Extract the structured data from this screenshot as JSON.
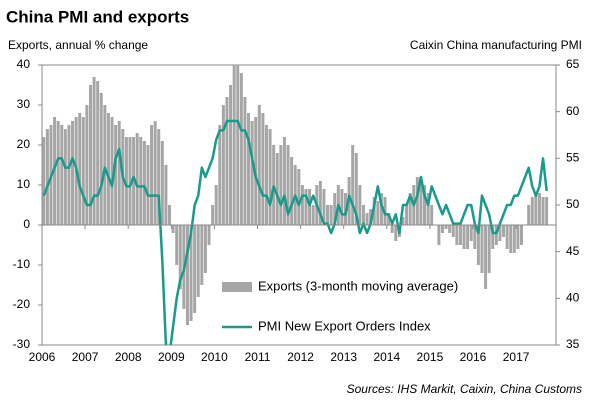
{
  "chart_data": {
    "type": "bar-line",
    "title": "China PMI and exports",
    "y_label": "Exports, annual % change",
    "y2_label": "Caixin China manufacturing PMI",
    "source": "Sources: IHS Markit, Caixin, China Customs",
    "categories": [
      "2006",
      null,
      null,
      null,
      null,
      null,
      null,
      null,
      null,
      null,
      null,
      null,
      "2007",
      null,
      null,
      null,
      null,
      null,
      null,
      null,
      null,
      null,
      null,
      null,
      "2008",
      null,
      null,
      null,
      null,
      null,
      null,
      null,
      null,
      null,
      null,
      null,
      "2009",
      null,
      null,
      null,
      null,
      null,
      null,
      null,
      null,
      null,
      null,
      null,
      "2010",
      null,
      null,
      null,
      null,
      null,
      null,
      null,
      null,
      null,
      null,
      null,
      "2011",
      null,
      null,
      null,
      null,
      null,
      null,
      null,
      null,
      null,
      null,
      null,
      "2012",
      null,
      null,
      null,
      null,
      null,
      null,
      null,
      null,
      null,
      null,
      null,
      "2013",
      null,
      null,
      null,
      null,
      null,
      null,
      null,
      null,
      null,
      null,
      null,
      "2014",
      null,
      null,
      null,
      null,
      null,
      null,
      null,
      null,
      null,
      null,
      null,
      "2015",
      null,
      null,
      null,
      null,
      null,
      null,
      null,
      null,
      null,
      null,
      null,
      "2016",
      null,
      null,
      null,
      null,
      null,
      null,
      null,
      null,
      null,
      null,
      null,
      "2017",
      null,
      null,
      null,
      null,
      null,
      null,
      null,
      null
    ],
    "series": [
      {
        "name": "Exports (3-month moving average)",
        "color": "#a6a6a6",
        "axis": "y",
        "values": [
          22,
          24,
          25,
          27,
          26,
          25,
          24,
          25,
          26,
          27,
          28,
          27,
          30,
          35,
          37,
          36,
          33,
          30,
          28,
          27,
          25,
          26,
          24,
          22,
          22,
          22,
          23,
          22,
          21,
          20,
          25,
          26,
          24,
          21,
          15,
          5,
          -2,
          -10,
          -16,
          -21,
          -25,
          -24,
          -22,
          -18,
          -15,
          -12,
          -5,
          5,
          10,
          25,
          30,
          32,
          35,
          40,
          40,
          38,
          32,
          28,
          26,
          27,
          30,
          28,
          25,
          24,
          20,
          18,
          20,
          22,
          20,
          17,
          15,
          14,
          10,
          9,
          9,
          5,
          10,
          11,
          9,
          5,
          5,
          8,
          10,
          9,
          8,
          12,
          20,
          18,
          10,
          5,
          3,
          4,
          7,
          6,
          8,
          7,
          3,
          -2,
          -4,
          -3,
          2,
          5,
          8,
          10,
          12,
          12,
          10,
          8,
          5,
          0,
          -5,
          -2,
          -1,
          -2,
          -3,
          -5,
          -5,
          -6,
          -6,
          -4,
          -6,
          -10,
          -12,
          -16,
          -12,
          -6,
          -5,
          -4,
          -3,
          -6,
          -7,
          -7,
          -6,
          -5,
          0,
          5,
          7,
          8,
          8,
          7,
          7
        ]
      },
      {
        "name": "PMI New Export Orders Index",
        "color": "#1a9a8a",
        "axis": "y2",
        "values": [
          51,
          52,
          53,
          54,
          55,
          55,
          54,
          54,
          55,
          54,
          52,
          51,
          50,
          50,
          51,
          51,
          52,
          54,
          53,
          52,
          55,
          56,
          53,
          52,
          52,
          53,
          52,
          52,
          52,
          51,
          51,
          51,
          51,
          44,
          35,
          34,
          37,
          40,
          42,
          43,
          45,
          47,
          50,
          51,
          54,
          53,
          54,
          55,
          57,
          58,
          58,
          59,
          59,
          59,
          59,
          58,
          58,
          57,
          55,
          53,
          52,
          51,
          51,
          50,
          52,
          51,
          50,
          51,
          49,
          50,
          51,
          50,
          51,
          51,
          50,
          51,
          50,
          49,
          48,
          48,
          47,
          48,
          50,
          49,
          49,
          51,
          50,
          49,
          47,
          48,
          47,
          48,
          50,
          52,
          50,
          49,
          49,
          48,
          49,
          47,
          50,
          50,
          51,
          50,
          51,
          53,
          51,
          50,
          52,
          51,
          50,
          49,
          50,
          49,
          48,
          48,
          48,
          49,
          50,
          50,
          48,
          47,
          51,
          50,
          49,
          47,
          47,
          48,
          49,
          50,
          50,
          51,
          51,
          52,
          53,
          54,
          52,
          51,
          52,
          55,
          51.5
        ]
      }
    ],
    "ylim": [
      -30,
      40
    ],
    "yticks": [
      -30,
      -20,
      -10,
      0,
      10,
      20,
      30,
      40
    ],
    "y2lim": [
      35,
      65
    ],
    "y2ticks": [
      35,
      40,
      45,
      50,
      55,
      60,
      65
    ],
    "legend": "lower center"
  }
}
